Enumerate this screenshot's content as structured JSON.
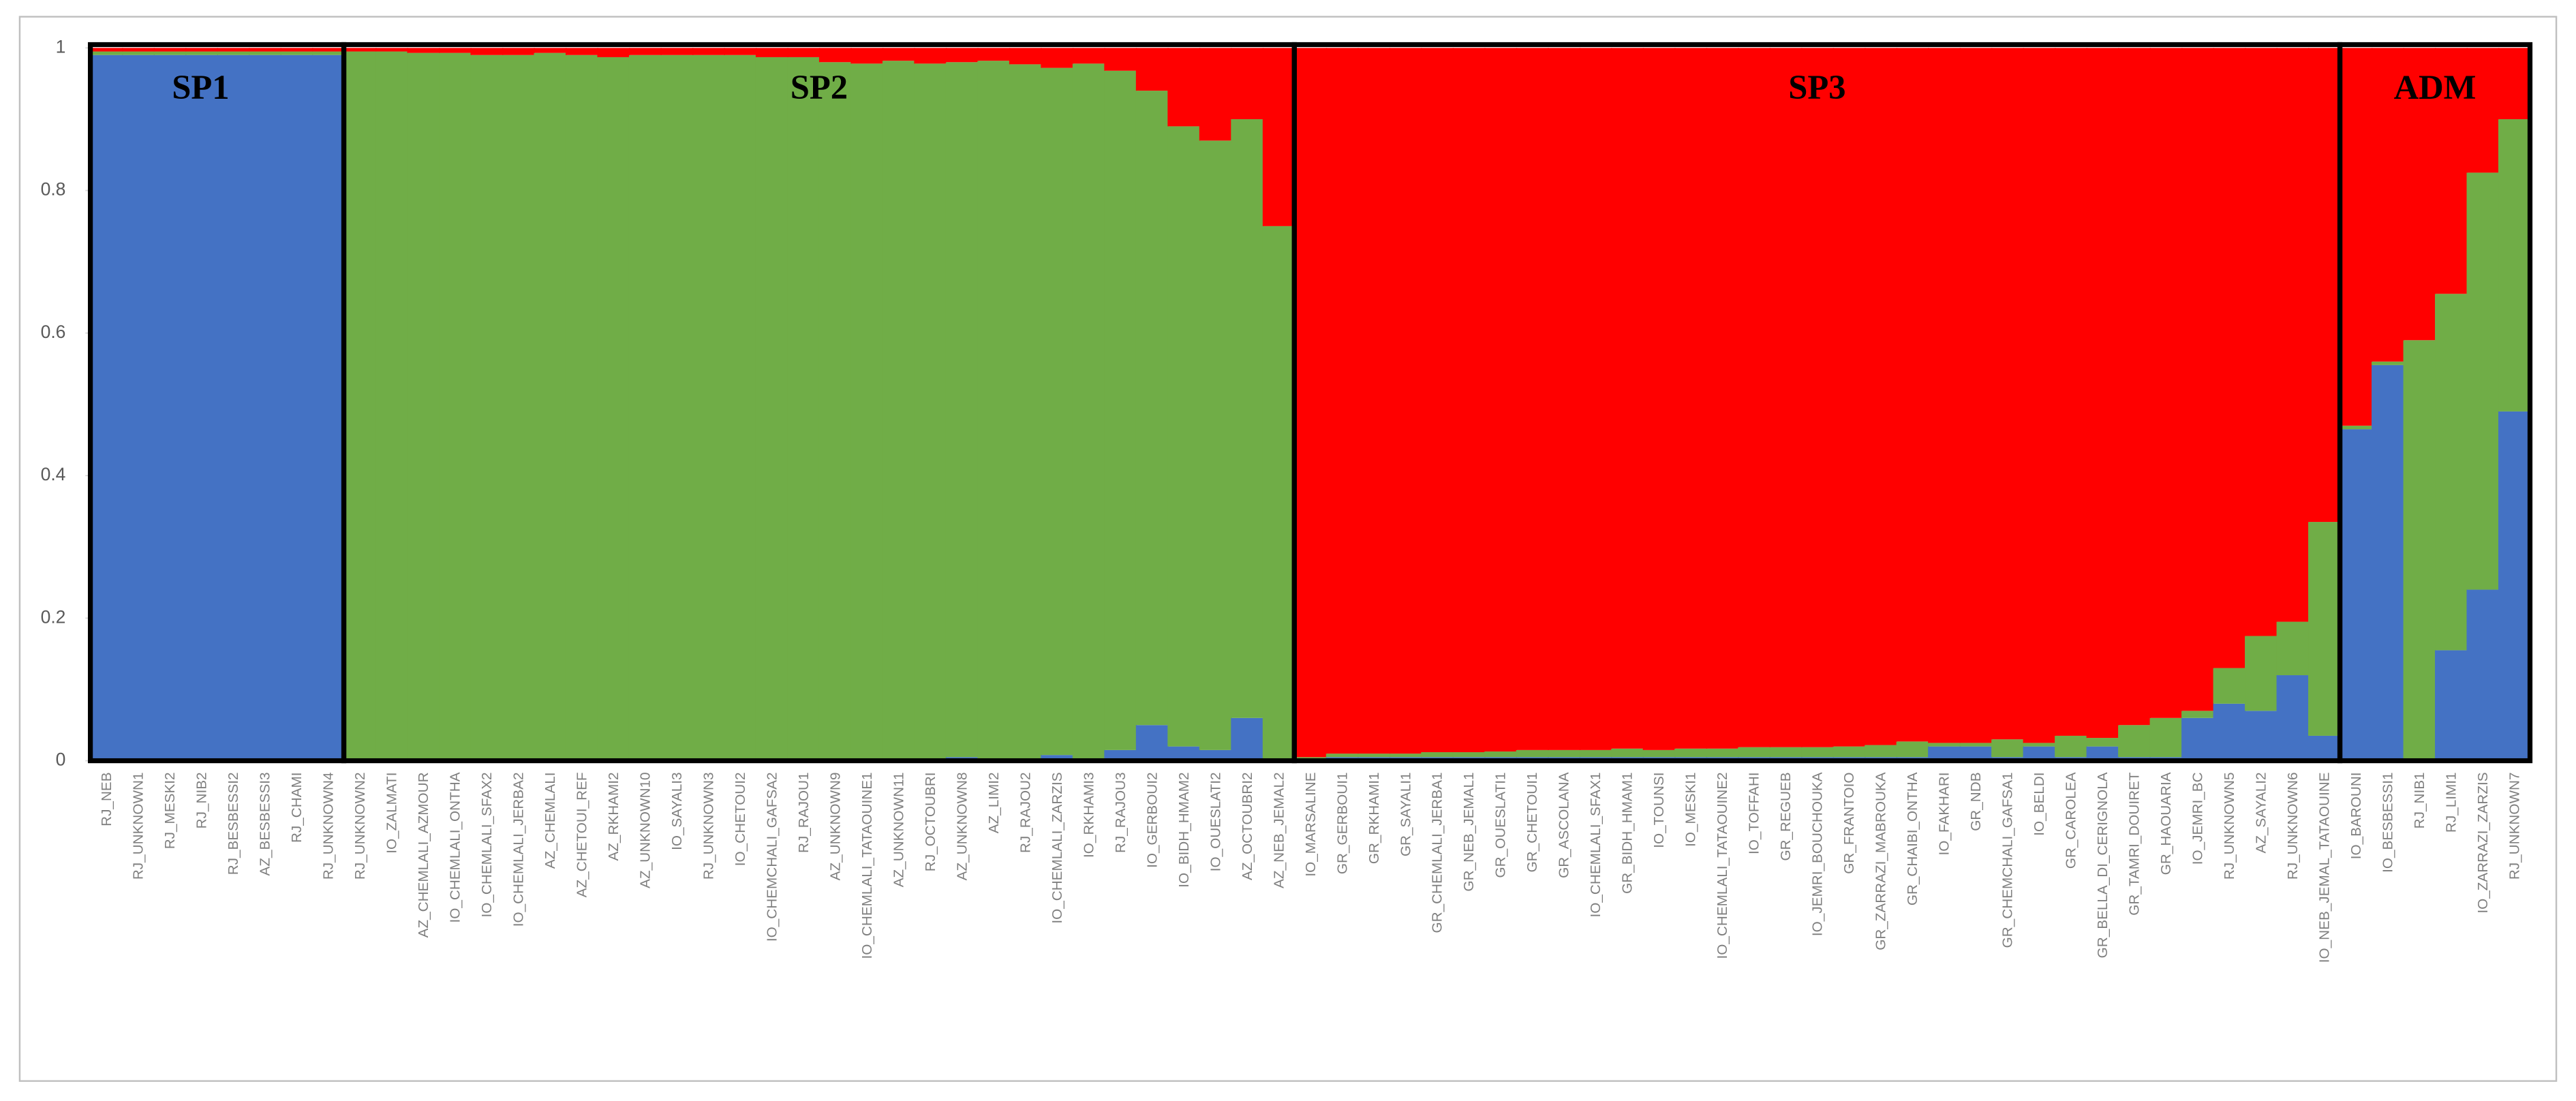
{
  "chart_data": {
    "type": "stacked_bar",
    "categories": [
      "RJ_NEB",
      "RJ_UNKNOWN1",
      "RJ_MESKI2",
      "RJ_NIB2",
      "RJ_BESBESSI2",
      "AZ_BESBESSI3",
      "RJ_CHAMI",
      "RJ_UNKNOWN4",
      "RJ_UNKNOWN2",
      "IO_ZALMATI",
      "AZ_CHEMLALI_AZMOUR",
      "IO_CHEMLALI_ONTHA",
      "IO_CHEMLALI_SFAX2",
      "IO_CHEMLALI_JERBA2",
      "AZ_CHEMLALI",
      "AZ_CHETOUI_REF",
      "AZ_RKHAMI2",
      "AZ_UNKNOWN10",
      "IO_SAYALI3",
      "RJ_UNKNOWN3",
      "IO_CHETOUI2",
      "IO_CHEMCHALI_GAFSA2",
      "RJ_RAJOU1",
      "AZ_UNKNOWN9",
      "IO_CHEMLALI_TATAOUINE1",
      "AZ_UNKNOWN11",
      "RJ_OCTOUBRI",
      "AZ_UNKNOWN8",
      "AZ_LIMI2",
      "RJ_RAJOU2",
      "IO_CHEMLALI_ZARZIS",
      "IO_RKHAMI3",
      "RJ_RAJOU3",
      "IO_GERBOUI2",
      "IO_BIDH_HMAM2",
      "IO_OUESLATI2",
      "AZ_OCTOUBRI2",
      "AZ_NEB_JEMAL2",
      "IO_MARSALINE",
      "GR_GERBOUI1",
      "GR_RKHAMI1",
      "GR_SAYALI1",
      "GR_CHEMLALI_JERBA1",
      "GR_NEB_JEMAL1",
      "GR_OUESLATI1",
      "GR_CHETOUI1",
      "GR_ASCOLANA",
      "IO_CHEMLALI_SFAX1",
      "GR_BIDH_HMAM1",
      "IO_TOUNSI",
      "IO_MESKI1",
      "IO_CHEMLALI_TATAOUINE2",
      "IO_TOFFAHI",
      "GR_REGUEB",
      "IO_JEMRI_BOUCHOUKA",
      "GR_FRANTOIO",
      "GR_ZARRAZI_MABROUKA",
      "GR_CHAIBI_ONTHA",
      "IO_FAKHARI",
      "GR_NDB",
      "GR_CHEMCHALI_GAFSA1",
      "IO_BELDI",
      "GR_CAROLEA",
      "GR_BELLA_DI_CERIGNOLA",
      "GR_TAMRI_DOUIRET",
      "GR_HAOUARIA",
      "IO_JEMRI_BC",
      "RJ_UNKNOWN5",
      "AZ_SAYALI2",
      "RJ_UNKNOWN6",
      "IO_NEB_JEMAL_TATAOUINE",
      "IO_BAROUNI",
      "IO_BESBESSI1",
      "RJ_NIB1",
      "RJ_LIMI1",
      "IO_ZARRAZI_ZARZIS",
      "RJ_UNKNOWN7"
    ],
    "series": [
      {
        "color": "#4472c4",
        "values": [
          0.99,
          0.99,
          0.99,
          0.99,
          0.99,
          0.99,
          0.99,
          0.99,
          0,
          0,
          0,
          0,
          0,
          0,
          0,
          0,
          0,
          0,
          0,
          0,
          0,
          0,
          0,
          0,
          0,
          0,
          0,
          0.005,
          0,
          0,
          0.008,
          0,
          0.015,
          0.05,
          0.02,
          0.015,
          0.06,
          0,
          0,
          0.005,
          0.005,
          0.005,
          0.005,
          0.005,
          0.005,
          0.005,
          0.005,
          0.005,
          0.005,
          0.005,
          0.005,
          0.005,
          0.005,
          0.005,
          0.005,
          0.005,
          0.005,
          0.005,
          0.02,
          0.02,
          0.005,
          0.02,
          0.005,
          0.02,
          0.005,
          0.005,
          0.06,
          0.08,
          0.07,
          0.12,
          0.035,
          0.465,
          0.555,
          0,
          0.155,
          0.24,
          0.49
        ]
      },
      {
        "color": "#70ad47",
        "values": [
          0.005,
          0.005,
          0.005,
          0.005,
          0.005,
          0.005,
          0.005,
          0.005,
          0.995,
          0.995,
          0.993,
          0.993,
          0.99,
          0.99,
          0.993,
          0.99,
          0.987,
          0.99,
          0.99,
          0.99,
          0.99,
          0.987,
          0.987,
          0.98,
          0.978,
          0.982,
          0.978,
          0.975,
          0.982,
          0.977,
          0.964,
          0.978,
          0.953,
          0.89,
          0.87,
          0.855,
          0.84,
          0.75,
          0.005,
          0.005,
          0.005,
          0.005,
          0.007,
          0.007,
          0.008,
          0.01,
          0.01,
          0.01,
          0.012,
          0.01,
          0.012,
          0.012,
          0.014,
          0.014,
          0.014,
          0.015,
          0.017,
          0.022,
          0.005,
          0.005,
          0.025,
          0.005,
          0.03,
          0.012,
          0.045,
          0.055,
          0.01,
          0.05,
          0.105,
          0.075,
          0.3,
          0.005,
          0.005,
          0.59,
          0.5,
          0.585,
          0.41
        ]
      },
      {
        "color": "#ff0000",
        "values": [
          0.005,
          0.005,
          0.005,
          0.005,
          0.005,
          0.005,
          0.005,
          0.005,
          0.005,
          0.005,
          0.007,
          0.007,
          0.01,
          0.01,
          0.007,
          0.01,
          0.013,
          0.01,
          0.01,
          0.01,
          0.01,
          0.013,
          0.013,
          0.02,
          0.022,
          0.018,
          0.022,
          0.02,
          0.018,
          0.023,
          0.028,
          0.022,
          0.032,
          0.06,
          0.11,
          0.13,
          0.1,
          0.25,
          0.995,
          0.99,
          0.99,
          0.99,
          0.988,
          0.988,
          0.987,
          0.985,
          0.985,
          0.985,
          0.983,
          0.985,
          0.983,
          0.983,
          0.981,
          0.981,
          0.981,
          0.98,
          0.978,
          0.973,
          0.975,
          0.975,
          0.97,
          0.975,
          0.965,
          0.968,
          0.95,
          0.94,
          0.93,
          0.87,
          0.825,
          0.805,
          0.665,
          0.53,
          0.44,
          0.41,
          0.345,
          0.175,
          0.1
        ]
      }
    ],
    "groups": [
      {
        "label": "SP1",
        "members": 8
      },
      {
        "label": "SP2",
        "members": 30
      },
      {
        "label": "SP3",
        "members": 33
      },
      {
        "label": "ADM",
        "members": 6
      }
    ],
    "ylim": [
      0,
      1
    ],
    "yticks": [
      0,
      0.2,
      0.4,
      0.6,
      0.8,
      1
    ]
  }
}
